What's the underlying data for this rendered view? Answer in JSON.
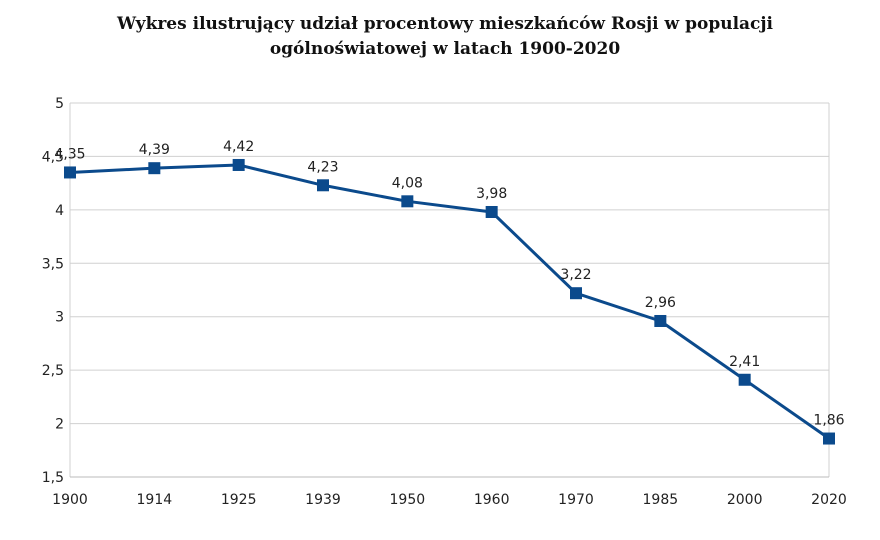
{
  "chart_data": {
    "type": "line",
    "title_lines": [
      "Wykres ilustrujący udział procentowy mieszkańców Rosji w populacji",
      "ogólnoświatowej w latach 1900-2020"
    ],
    "categories": [
      "1900",
      "1914",
      "1925",
      "1939",
      "1950",
      "1960",
      "1970",
      "1985",
      "2000",
      "2020"
    ],
    "series": [
      {
        "values": [
          4.35,
          4.39,
          4.42,
          4.23,
          4.08,
          3.98,
          3.22,
          2.96,
          2.41,
          1.86
        ],
        "labels": [
          "4,35",
          "4,39",
          "4,42",
          "4,23",
          "4,08",
          "3,98",
          "3,22",
          "2,96",
          "2,41",
          "1,86"
        ],
        "color": "#0b4a8c"
      }
    ],
    "yticks": [
      1.5,
      2,
      2.5,
      3,
      3.5,
      4,
      4.5,
      5
    ],
    "ytick_labels": [
      "1,5",
      "2",
      "2,5",
      "3",
      "3,5",
      "4",
      "4,5",
      "5"
    ],
    "ylim": [
      1.5,
      5
    ],
    "grid": true,
    "gridline_color": "#d0d0d0",
    "marker": "square"
  }
}
